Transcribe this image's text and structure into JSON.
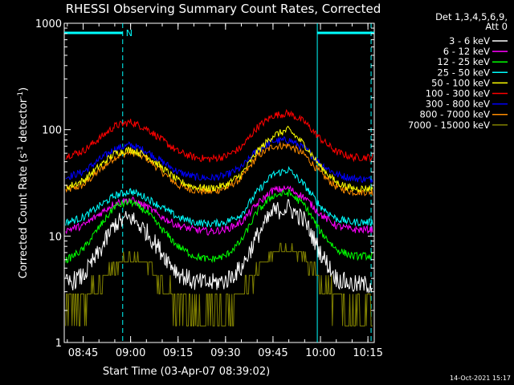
{
  "chart_data": {
    "type": "line",
    "title": "RHESSI Observing Summary Count Rates, Corrected",
    "xlabel": "Start Time (03-Apr-07 08:39:02)",
    "ylabel_main": "Corrected Count Rate (s",
    "ylabel_sup1": "-1",
    "ylabel_mid": " detector",
    "ylabel_sup2": "-1",
    "ylabel_end": ")",
    "yscale": "log",
    "ylim": [
      1,
      1000
    ],
    "xlim": [
      "08:39:02",
      "10:17:00"
    ],
    "xticks": [
      "08:45",
      "09:00",
      "09:15",
      "09:30",
      "09:45",
      "10:00",
      "10:15"
    ],
    "yticks": [
      "1",
      "10",
      "100",
      "1000"
    ],
    "legend_header": [
      "Det 1,3,4,5,6,9,",
      "Att 0"
    ],
    "legend_position": "right",
    "timestamp": "14-Oct-2021 15:17",
    "annotations": {
      "night_label": "N",
      "night_intervals": [
        [
          "08:39:02",
          "08:57:30"
        ],
        [
          "09:59:00",
          "10:17:00"
        ]
      ],
      "dashed_markers": [
        "08:57:30",
        "10:16:00"
      ],
      "solid_markers": [
        "09:59:00"
      ],
      "color": "#00ffff"
    },
    "x_hours": [
      "08:40",
      "08:45",
      "08:50",
      "08:55",
      "09:00",
      "09:05",
      "09:10",
      "09:15",
      "09:20",
      "09:25",
      "09:30",
      "09:35",
      "09:40",
      "09:45",
      "09:50",
      "09:55",
      "10:00",
      "10:05",
      "10:10",
      "10:15"
    ],
    "series": [
      {
        "name": "3 - 6 keV",
        "color": "#ffffff",
        "values": [
          3.6,
          4.2,
          7.0,
          13.0,
          15.0,
          11.0,
          7.0,
          4.5,
          3.7,
          3.6,
          3.8,
          5.0,
          10.0,
          17.0,
          18.5,
          14.0,
          7.0,
          4.0,
          3.5,
          3.5
        ]
      },
      {
        "name": "6 - 12 keV",
        "color": "#ff00ff",
        "values": [
          11.5,
          12.5,
          16.0,
          20.5,
          22.0,
          19.0,
          15.0,
          12.5,
          11.5,
          11.0,
          11.5,
          13.5,
          20.0,
          27.0,
          28.0,
          23.0,
          16.0,
          12.5,
          11.5,
          11.5
        ]
      },
      {
        "name": "12 - 25 keV",
        "color": "#00ff00",
        "values": [
          6.0,
          7.5,
          12.0,
          19.0,
          21.0,
          17.0,
          11.5,
          8.0,
          6.5,
          6.0,
          6.5,
          9.0,
          17.0,
          24.0,
          25.5,
          19.5,
          11.0,
          7.5,
          6.5,
          6.5
        ]
      },
      {
        "name": "25 - 50 keV",
        "color": "#00ffff",
        "values": [
          13.5,
          15.0,
          19.0,
          24.0,
          26.5,
          23.0,
          18.5,
          15.0,
          13.5,
          13.0,
          13.5,
          16.0,
          26.0,
          38.0,
          42.0,
          30.0,
          19.0,
          14.5,
          13.5,
          13.5
        ]
      },
      {
        "name": "50 - 100 keV",
        "color": "#ffff00",
        "values": [
          29.0,
          33.0,
          45.0,
          60.0,
          65.0,
          57.0,
          44.0,
          33.0,
          29.0,
          28.0,
          30.0,
          38.0,
          62.0,
          88.0,
          100.0,
          72.0,
          45.0,
          32.0,
          28.0,
          28.0
        ]
      },
      {
        "name": "100 - 300 keV",
        "color": "#ff0000",
        "values": [
          57.0,
          63.0,
          82.0,
          108.0,
          118.0,
          103.0,
          80.0,
          62.0,
          55.0,
          53.0,
          56.0,
          68.0,
          105.0,
          136.0,
          143.0,
          118.0,
          82.0,
          62.0,
          55.0,
          55.0
        ]
      },
      {
        "name": "300 - 800 keV",
        "color": "#0000ff",
        "values": [
          36.0,
          40.0,
          52.0,
          66.0,
          72.0,
          63.0,
          50.0,
          40.0,
          36.0,
          35.0,
          37.0,
          44.0,
          64.0,
          78.0,
          80.0,
          67.0,
          48.0,
          38.0,
          35.0,
          34.0
        ]
      },
      {
        "name": "800 - 7000 keV",
        "color": "#ff8c00",
        "values": [
          27.0,
          30.0,
          41.0,
          55.0,
          62.0,
          54.0,
          40.0,
          30.0,
          27.0,
          26.0,
          28.0,
          35.0,
          56.0,
          70.0,
          71.0,
          58.0,
          39.0,
          29.0,
          26.0,
          26.0
        ]
      },
      {
        "name": "7000 - 15000 keV",
        "color": "#808000",
        "values": [
          1.5,
          2.0,
          3.0,
          5.0,
          6.0,
          5.0,
          3.0,
          2.0,
          1.5,
          1.5,
          1.5,
          2.5,
          4.5,
          6.5,
          7.0,
          6.0,
          3.5,
          2.0,
          1.5,
          1.5
        ]
      }
    ]
  }
}
